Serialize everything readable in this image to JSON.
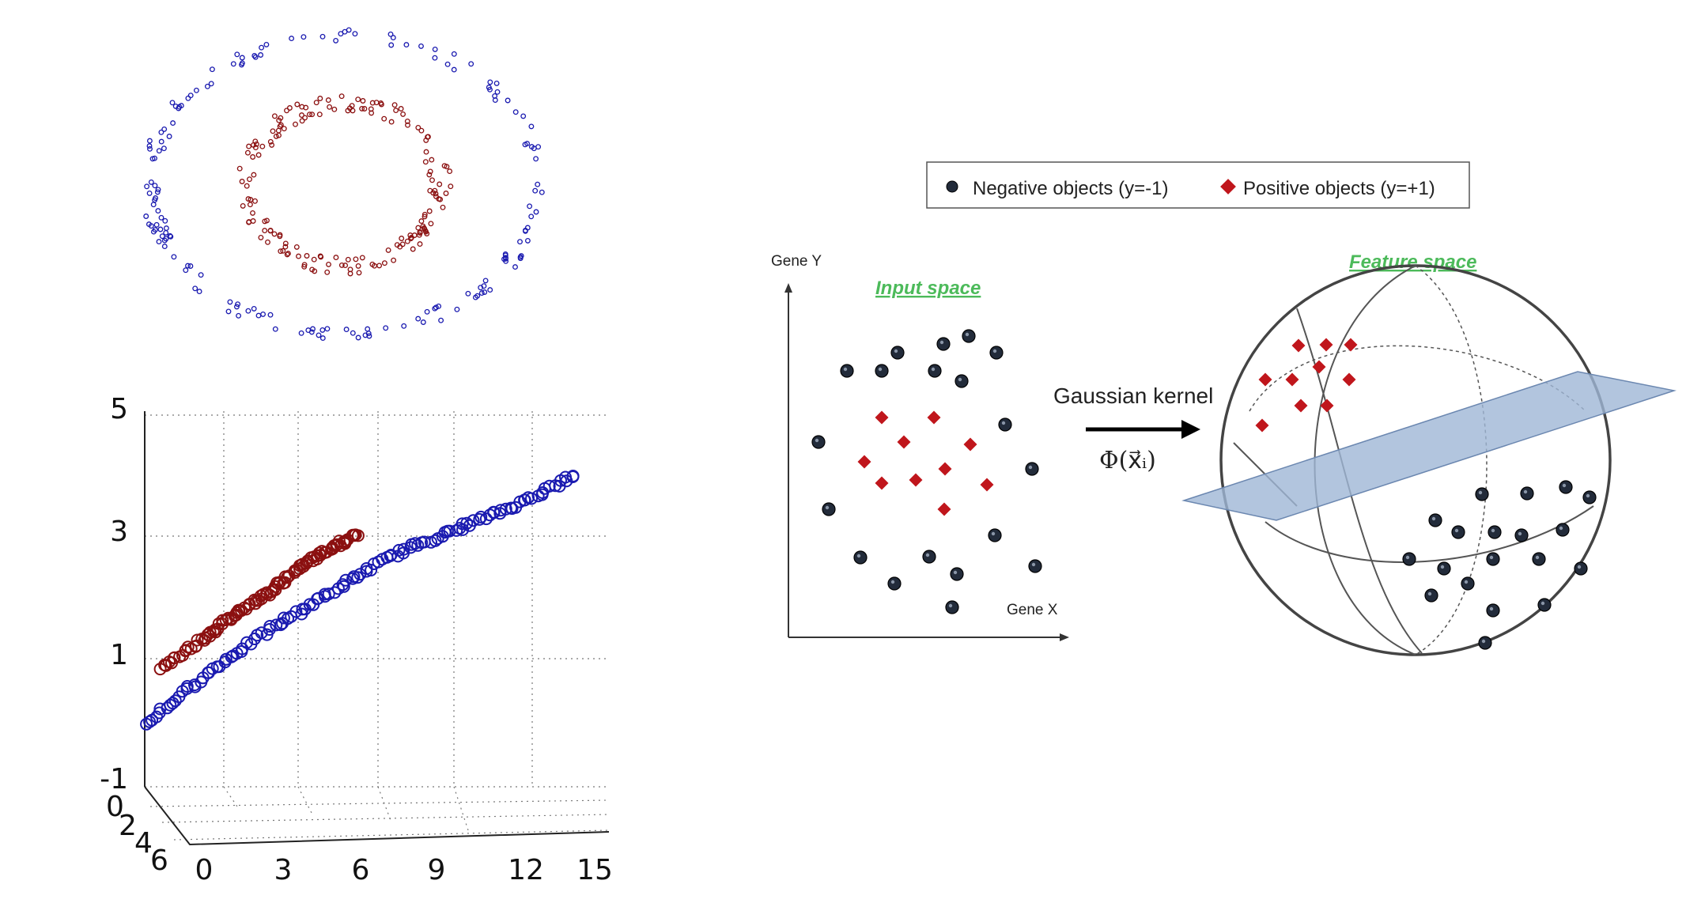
{
  "colors": {
    "class_a": "#1a1ab0",
    "class_b": "#8b1010",
    "negative": "#222b3a",
    "positive": "#c0161c",
    "plane": "#9fb6d6",
    "title_green": "#4cba5a"
  },
  "chart_data": [
    {
      "type": "scatter",
      "title": "",
      "series": [
        {
          "color": "#1a1ab0",
          "shape": "circle",
          "radius": 1.0,
          "count": 170
        },
        {
          "color": "#8b1010",
          "shape": "circle",
          "radius": 0.5,
          "count": 170
        }
      ],
      "grid": false,
      "axes": false
    },
    {
      "type": "scatter",
      "title": "",
      "projection": "3d",
      "z_ticks": [
        "5",
        "3",
        "1",
        "-1"
      ],
      "x_ticks": [
        "0",
        "3",
        "6",
        "9",
        "12",
        "15"
      ],
      "y_ticks": [
        "0",
        "2",
        "4",
        "6"
      ],
      "zlim": [
        -1,
        5
      ],
      "xlim": [
        0,
        15
      ],
      "grid": true,
      "series": [
        {
          "color": "#1a1ab0",
          "points": [
            [
              0,
              0
            ],
            [
              2,
              0.8
            ],
            [
              4,
              1.5
            ],
            [
              6,
              2.1
            ],
            [
              8,
              2.7
            ],
            [
              10,
              3.1
            ],
            [
              12,
              3.5
            ],
            [
              14,
              4.0
            ]
          ]
        },
        {
          "color": "#8b1010",
          "points": [
            [
              0.5,
              0.9
            ],
            [
              2,
              1.4
            ],
            [
              3,
              1.8
            ],
            [
              4,
              2.1
            ],
            [
              5,
              2.5
            ],
            [
              6,
              2.8
            ],
            [
              6.9,
              3.05
            ]
          ]
        }
      ]
    }
  ],
  "kernel_diagram": {
    "legend": {
      "negative": "Negative objects (y=-1)",
      "positive": "Positive objects (y=+1)"
    },
    "input_space": {
      "title": "Input space",
      "y_axis_label": "Gene Y",
      "x_axis_label": "Gene X"
    },
    "arrow_label": "Gaussian kernel",
    "mapping_formula": "Φ(x⃗ᵢ)",
    "feature_space": {
      "title": "Feature space"
    }
  }
}
